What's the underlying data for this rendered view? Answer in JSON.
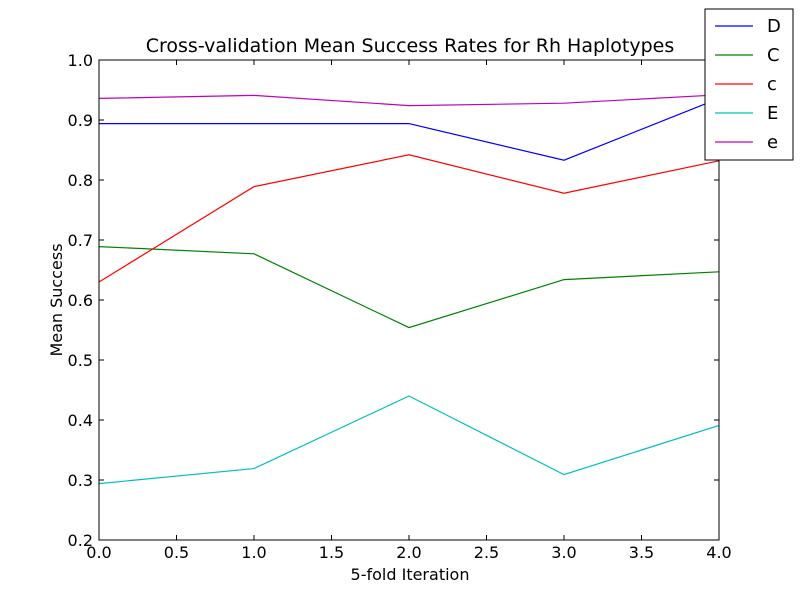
{
  "chart_data": {
    "type": "line",
    "title": "Cross-validation Mean Success Rates for Rh Haplotypes",
    "xlabel": "5-fold Iteration",
    "ylabel": "Mean Success",
    "xlim": [
      0.0,
      4.0
    ],
    "ylim": [
      0.2,
      1.0
    ],
    "xticks": [
      "0.0",
      "0.5",
      "1.0",
      "1.5",
      "2.0",
      "2.5",
      "3.0",
      "3.5",
      "4.0"
    ],
    "yticks": [
      "0.2",
      "0.3",
      "0.4",
      "0.5",
      "0.6",
      "0.7",
      "0.8",
      "0.9",
      "1.0"
    ],
    "grid": false,
    "legend_position": "top-right",
    "x": [
      0,
      1,
      2,
      3,
      4
    ],
    "series": [
      {
        "name": "D",
        "color": "#0000ff",
        "values": [
          0.894,
          0.894,
          0.894,
          0.833,
          0.936
        ]
      },
      {
        "name": "C",
        "color": "#008000",
        "values": [
          0.689,
          0.677,
          0.554,
          0.634,
          0.647
        ]
      },
      {
        "name": "c",
        "color": "#ff0000",
        "values": [
          0.63,
          0.789,
          0.842,
          0.778,
          0.832
        ]
      },
      {
        "name": "E",
        "color": "#00bfbf",
        "values": [
          0.294,
          0.319,
          0.44,
          0.309,
          0.391
        ]
      },
      {
        "name": "e",
        "color": "#bf00bf",
        "values": [
          0.936,
          0.941,
          0.924,
          0.928,
          0.942
        ]
      }
    ]
  }
}
